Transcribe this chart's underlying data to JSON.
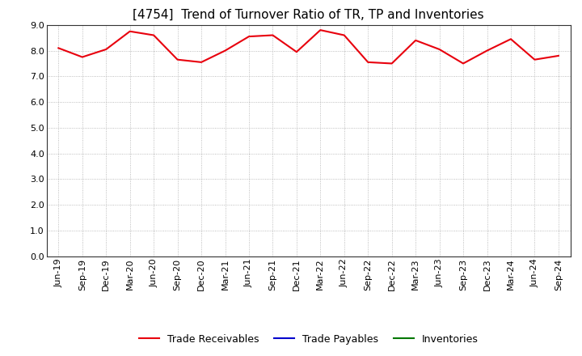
{
  "title": "[4754]  Trend of Turnover Ratio of TR, TP and Inventories",
  "x_labels": [
    "Jun-19",
    "Sep-19",
    "Dec-19",
    "Mar-20",
    "Jun-20",
    "Sep-20",
    "Dec-20",
    "Mar-21",
    "Jun-21",
    "Sep-21",
    "Dec-21",
    "Mar-22",
    "Jun-22",
    "Sep-22",
    "Dec-22",
    "Mar-23",
    "Jun-23",
    "Sep-23",
    "Dec-23",
    "Mar-24",
    "Jun-24",
    "Sep-24"
  ],
  "trade_receivables": [
    8.1,
    7.75,
    8.05,
    8.75,
    8.6,
    7.65,
    7.55,
    8.0,
    8.55,
    8.6,
    7.95,
    8.8,
    8.6,
    7.55,
    7.5,
    8.4,
    8.05,
    7.5,
    8.0,
    8.45,
    7.65,
    7.8
  ],
  "trade_payables": [],
  "inventories": [],
  "tr_color": "#e8000d",
  "tp_color": "#0000cc",
  "inv_color": "#007700",
  "background_color": "#ffffff",
  "grid_color": "#aaaaaa",
  "ylim": [
    0.0,
    9.0
  ],
  "yticks": [
    0.0,
    1.0,
    2.0,
    3.0,
    4.0,
    5.0,
    6.0,
    7.0,
    8.0,
    9.0
  ],
  "title_fontsize": 11,
  "legend_fontsize": 9,
  "axis_fontsize": 8
}
